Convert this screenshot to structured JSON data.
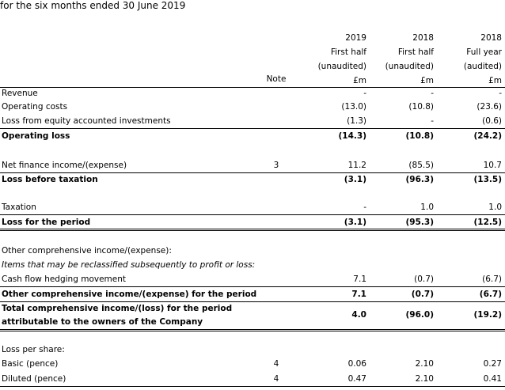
{
  "caption": "for the six months ended 30 June 2019",
  "columns": [
    {
      "year": "2019",
      "period": "First half",
      "status": "(unaudited)",
      "unit": "£m"
    },
    {
      "year": "2018",
      "period": "First half",
      "status": "(unaudited)",
      "unit": "£m"
    },
    {
      "year": "2018",
      "period": "Full year",
      "status": "(audited)",
      "unit": "£m"
    }
  ],
  "note_header": "Note",
  "rows": [
    {
      "label": "Revenue",
      "note": "",
      "v": [
        "-",
        "-",
        "-"
      ]
    },
    {
      "label": "Operating costs",
      "note": "",
      "v": [
        "(13.0)",
        "(10.8)",
        "(23.6)"
      ]
    },
    {
      "label": "Loss from equity accounted investments",
      "note": "",
      "v": [
        "(1.3)",
        "-",
        "(0.6)"
      ]
    },
    {
      "label": "Operating loss",
      "note": "",
      "v": [
        "(14.3)",
        "(10.8)",
        "(24.2)"
      ]
    },
    {
      "label": "Net finance income/(expense)",
      "note": "3",
      "v": [
        "11.2",
        "(85.5)",
        "10.7"
      ]
    },
    {
      "label": "Loss before taxation",
      "note": "",
      "v": [
        "(3.1)",
        "(96.3)",
        "(13.5)"
      ]
    },
    {
      "label": "Taxation",
      "note": "",
      "v": [
        "-",
        "1.0",
        "1.0"
      ]
    },
    {
      "label": "Loss for the period",
      "note": "",
      "v": [
        "(3.1)",
        "(95.3)",
        "(12.5)"
      ]
    },
    {
      "label": "Other comprehensive income/(expense):",
      "note": "",
      "v": [
        "",
        "",
        ""
      ]
    },
    {
      "label": "Items that may be reclassified subsequently to profit or loss:",
      "note": "",
      "v": [
        "",
        "",
        ""
      ]
    },
    {
      "label": "Cash flow hedging movement",
      "note": "",
      "v": [
        "7.1",
        "(0.7)",
        "(6.7)"
      ]
    },
    {
      "label": "Other comprehensive income/(expense) for the period",
      "note": "",
      "v": [
        "7.1",
        "(0.7)",
        "(6.7)"
      ]
    },
    {
      "label": "Total comprehensive income/(loss) for the period",
      "note": "",
      "v": [
        "4.0",
        "(96.0)",
        "(19.2)"
      ]
    },
    {
      "label": "attributable to the owners of the Company",
      "note": "",
      "v": [
        "",
        "",
        ""
      ]
    },
    {
      "label": "Loss per share:",
      "note": "",
      "v": [
        "",
        "",
        ""
      ]
    },
    {
      "label": "Basic (pence)",
      "note": "4",
      "v": [
        "0.06",
        "2.10",
        "0.27"
      ]
    },
    {
      "label": "Diluted (pence)",
      "note": "4",
      "v": [
        "0.47",
        "2.10",
        "0.41"
      ]
    }
  ]
}
